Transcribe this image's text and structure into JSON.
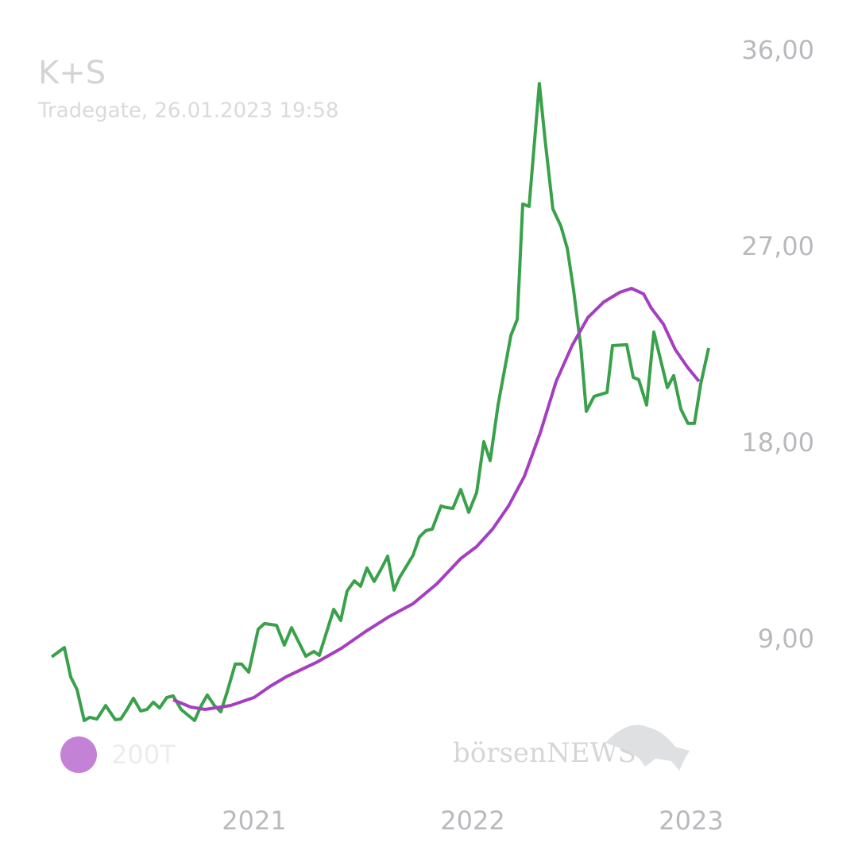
{
  "chart_data": {
    "type": "line",
    "title": "K+S",
    "subtitle": "Tradegate, 26.01.2023 19:58",
    "watermark": "börsenNEWS",
    "xlim": [
      2020.0,
      2023.2
    ],
    "xticks": [
      2021,
      2022,
      2023
    ],
    "ylim": [
      0,
      36
    ],
    "yticks": [
      {
        "value": 36,
        "label": "36,00"
      },
      {
        "value": 27,
        "label": "27,00"
      },
      {
        "value": 18,
        "label": "18,00"
      },
      {
        "value": 9,
        "label": "9,00"
      }
    ],
    "grid": false,
    "series": [
      {
        "color": "#3aa14b",
        "x": [
          2020.073,
          2020.131,
          2020.16,
          2020.189,
          2020.222,
          2020.247,
          2020.28,
          2020.32,
          2020.364,
          2020.389,
          2020.418,
          2020.447,
          2020.48,
          2020.509,
          2020.538,
          2020.567,
          2020.6,
          2020.629,
          2020.665,
          2020.727,
          2020.756,
          2020.785,
          2020.818,
          2020.847,
          2020.876,
          2020.913,
          2020.942,
          2020.975,
          2021.018,
          2021.047,
          2021.102,
          2021.138,
          2021.171,
          2021.236,
          2021.273,
          2021.298,
          2021.364,
          2021.396,
          2021.425,
          2021.458,
          2021.487,
          2021.516,
          2021.549,
          2021.578,
          2021.611,
          2021.64,
          2021.665,
          2021.727,
          2021.756,
          2021.785,
          2021.815,
          2021.855,
          2021.88,
          2021.909,
          2021.945,
          2021.982,
          2022.018,
          2022.051,
          2022.08,
          2022.116,
          2022.175,
          2022.204,
          2022.229,
          2022.258,
          2022.305,
          2022.331,
          2022.367,
          2022.404,
          2022.433,
          2022.462,
          2022.495,
          2022.52,
          2022.556,
          2022.615,
          2022.64,
          2022.705,
          2022.735,
          2022.76,
          2022.796,
          2022.829,
          2022.891,
          2022.92,
          2022.953,
          2022.985,
          2023.015,
          2023.044,
          2023.08
        ],
        "values": [
          8.24,
          8.67,
          7.32,
          6.74,
          5.32,
          5.47,
          5.39,
          6.01,
          5.36,
          5.39,
          5.83,
          6.34,
          5.76,
          5.83,
          6.16,
          5.9,
          6.38,
          6.45,
          5.83,
          5.32,
          5.98,
          6.49,
          6.01,
          5.72,
          6.63,
          7.91,
          7.91,
          7.54,
          9.51,
          9.77,
          9.69,
          8.78,
          9.58,
          8.27,
          8.49,
          8.31,
          10.42,
          9.91,
          11.26,
          11.73,
          11.48,
          12.32,
          11.7,
          12.21,
          12.86,
          11.3,
          11.88,
          12.9,
          13.74,
          14.03,
          14.1,
          15.16,
          15.09,
          15.05,
          15.92,
          14.87,
          15.78,
          18.11,
          17.24,
          19.79,
          22.99,
          23.72,
          29.01,
          28.9,
          34.54,
          31.99,
          28.79,
          27.99,
          26.97,
          25.07,
          22.45,
          19.5,
          20.19,
          20.37,
          22.52,
          22.56,
          21.06,
          20.95,
          19.79,
          23.14,
          20.59,
          21.14,
          19.6,
          18.95,
          18.95,
          20.77,
          22.41
        ]
      },
      {
        "name": "200T",
        "color": "#a43fc0",
        "x": [
          2020.629,
          2020.709,
          2020.775,
          2020.891,
          2021.0,
          2021.073,
          2021.145,
          2021.291,
          2021.4,
          2021.509,
          2021.618,
          2021.727,
          2021.836,
          2021.945,
          2022.018,
          2022.091,
          2022.164,
          2022.236,
          2022.309,
          2022.382,
          2022.455,
          2022.527,
          2022.6,
          2022.673,
          2022.727,
          2022.782,
          2022.818,
          2022.873,
          2022.927,
          2022.982,
          2023.036
        ],
        "values": [
          6.27,
          5.94,
          5.83,
          6.01,
          6.38,
          6.89,
          7.32,
          8.02,
          8.64,
          9.4,
          10.09,
          10.68,
          11.59,
          12.75,
          13.3,
          14.1,
          15.16,
          16.51,
          18.51,
          20.88,
          22.52,
          23.8,
          24.52,
          24.96,
          25.14,
          24.89,
          24.23,
          23.5,
          22.34,
          21.54,
          20.88
        ]
      }
    ]
  }
}
